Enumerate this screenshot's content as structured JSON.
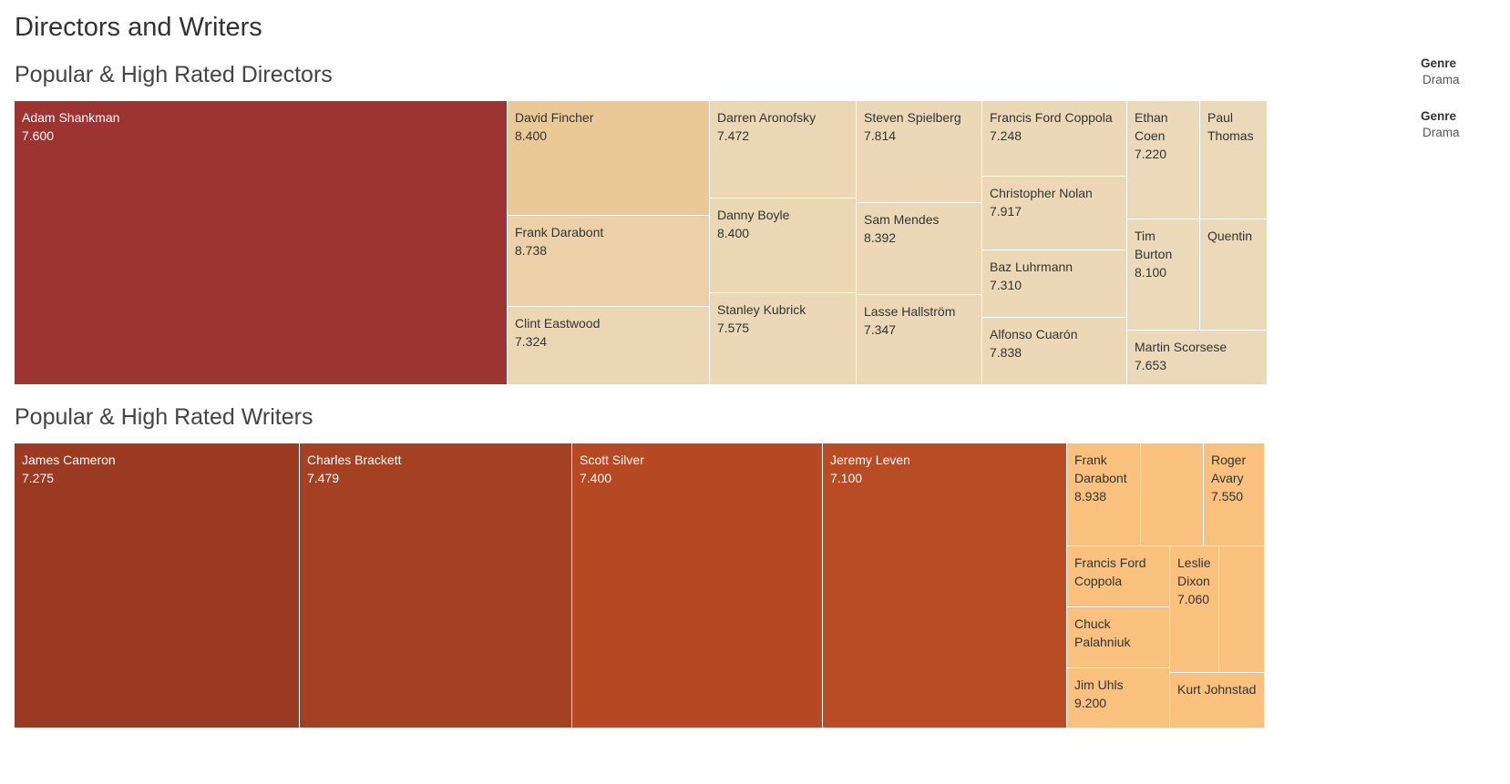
{
  "title": "Directors and Writers",
  "legends": [
    {
      "title": "Genre",
      "value": "Drama"
    },
    {
      "title": "Genre",
      "value": "Drama"
    }
  ],
  "chart_data": [
    {
      "type": "treemap",
      "title": "Popular & High Rated Directors",
      "tiles": [
        {
          "name": "Adam Shankman",
          "value": "7.600",
          "color": "#9c3432",
          "text": "#ffffff"
        },
        {
          "name": "David Fincher",
          "value": "8.400",
          "color": "#ebc996",
          "text": "#333333"
        },
        {
          "name": "Frank Darabont",
          "value": "8.738",
          "color": "#ecd0a7",
          "text": "#333333"
        },
        {
          "name": "Clint Eastwood",
          "value": "7.324",
          "color": "#ecd7b4",
          "text": "#333333"
        },
        {
          "name": "Darren Aronofsky",
          "value": "7.472",
          "color": "#ecd7b4",
          "text": "#333333"
        },
        {
          "name": "Danny Boyle",
          "value": "8.400",
          "color": "#ecd7b4",
          "text": "#333333"
        },
        {
          "name": "Stanley Kubrick",
          "value": "7.575",
          "color": "#ecd8b7",
          "text": "#333333"
        },
        {
          "name": "Steven Spielberg",
          "value": "7.814",
          "color": "#ecd8b7",
          "text": "#333333"
        },
        {
          "name": "Sam Mendes",
          "value": "8.392",
          "color": "#ecd8b7",
          "text": "#333333"
        },
        {
          "name": "Lasse Hallström",
          "value": "7.347",
          "color": "#ecd8b7",
          "text": "#333333"
        },
        {
          "name": "Francis Ford Coppola",
          "value": "7.248",
          "color": "#ecd8b7",
          "text": "#333333"
        },
        {
          "name": "Christopher Nolan",
          "value": "7.917",
          "color": "#ecd8b7",
          "text": "#333333"
        },
        {
          "name": "Baz Luhrmann",
          "value": "7.310",
          "color": "#ecd8b7",
          "text": "#333333"
        },
        {
          "name": "Alfonso Cuarón",
          "value": "7.838",
          "color": "#ecd8b7",
          "text": "#333333"
        },
        {
          "name": "Ethan Coen",
          "value": "7.220",
          "color": "#ecd9b9",
          "text": "#333333"
        },
        {
          "name": "Paul Thomas",
          "value": "",
          "color": "#ecd9b9",
          "text": "#333333"
        },
        {
          "name": "Tim Burton",
          "value": "8.100",
          "color": "#ecd9b9",
          "text": "#333333"
        },
        {
          "name": "Quentin",
          "value": "",
          "color": "#ecd9b9",
          "text": "#333333"
        },
        {
          "name": "Martin Scorsese",
          "value": "7.653",
          "color": "#ecd9b9",
          "text": "#333333"
        }
      ]
    },
    {
      "type": "treemap",
      "title": "Popular & High Rated Writers",
      "tiles": [
        {
          "name": "James Cameron",
          "value": "7.275",
          "color": "#9b3a22",
          "text": "#ffffff"
        },
        {
          "name": "Charles Brackett",
          "value": "7.479",
          "color": "#a44123",
          "text": "#ffffff"
        },
        {
          "name": "Scott Silver",
          "value": "7.400",
          "color": "#b44923",
          "text": "#ffffff"
        },
        {
          "name": "Jeremy Leven",
          "value": "7.100",
          "color": "#b84c24",
          "text": "#ffffff"
        },
        {
          "name": "Frank Darabont",
          "value": "8.938",
          "color": "#fac17e",
          "text": "#333333"
        },
        {
          "name": "",
          "value": "",
          "color": "#fac17e",
          "text": "#333333"
        },
        {
          "name": "Roger Avary",
          "value": "7.550",
          "color": "#fac17e",
          "text": "#333333"
        },
        {
          "name": "Francis Ford Coppola",
          "value": "",
          "color": "#fac17e",
          "text": "#333333"
        },
        {
          "name": "Leslie Dixon",
          "value": "7.060",
          "color": "#fac17e",
          "text": "#333333"
        },
        {
          "name": "",
          "value": "",
          "color": "#fac17e",
          "text": "#333333"
        },
        {
          "name": "Chuck Palahniuk",
          "value": "",
          "color": "#fac17e",
          "text": "#333333"
        },
        {
          "name": "Jim Uhls",
          "value": "9.200",
          "color": "#fac17e",
          "text": "#333333"
        },
        {
          "name": "Kurt Johnstad",
          "value": "",
          "color": "#fac17e",
          "text": "#333333"
        }
      ]
    }
  ]
}
